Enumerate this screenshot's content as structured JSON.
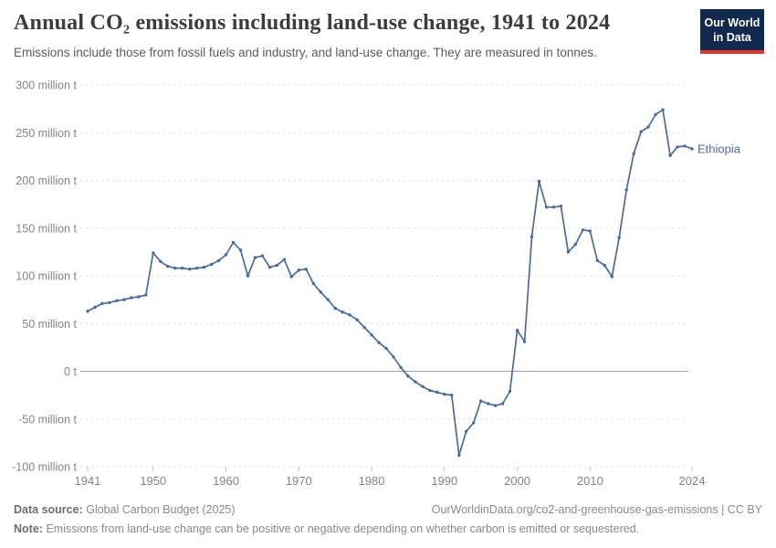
{
  "header": {
    "title": "Annual CO₂ emissions including land-use change, 1941 to 2024",
    "subtitle": "Emissions include those from fossil fuels and industry, and land-use change. They are measured in tonnes.",
    "logo": {
      "line1": "Our World",
      "line2": "in Data"
    }
  },
  "chart_data": {
    "type": "line",
    "title": "Annual CO₂ emissions including land-use change, 1941 to 2024",
    "ylabel": "",
    "xlabel": "",
    "unit": "million t",
    "grid": "horizontal dashed",
    "legend_position": "end-of-line label",
    "xlim": [
      1941,
      2024
    ],
    "ylim": [
      -100,
      300
    ],
    "x_ticks": [
      {
        "value": 1941,
        "label": "1941"
      },
      {
        "value": 1950,
        "label": "1950"
      },
      {
        "value": 1960,
        "label": "1960"
      },
      {
        "value": 1970,
        "label": "1970"
      },
      {
        "value": 1980,
        "label": "1980"
      },
      {
        "value": 1990,
        "label": "1990"
      },
      {
        "value": 2000,
        "label": "2000"
      },
      {
        "value": 2010,
        "label": "2010"
      },
      {
        "value": 2024,
        "label": "2024"
      }
    ],
    "y_ticks": [
      {
        "value": 300,
        "label": "300 million t"
      },
      {
        "value": 250,
        "label": "250 million t"
      },
      {
        "value": 200,
        "label": "200 million t"
      },
      {
        "value": 150,
        "label": "150 million t"
      },
      {
        "value": 100,
        "label": "100 million t"
      },
      {
        "value": 50,
        "label": "50 million t"
      },
      {
        "value": 0,
        "label": "0 t"
      },
      {
        "value": -50,
        "label": "-50 million t"
      },
      {
        "value": -100,
        "label": "-100 million t"
      }
    ],
    "x": [
      1941,
      1942,
      1943,
      1944,
      1945,
      1946,
      1947,
      1948,
      1949,
      1950,
      1951,
      1952,
      1953,
      1954,
      1955,
      1956,
      1957,
      1958,
      1959,
      1960,
      1961,
      1962,
      1963,
      1964,
      1965,
      1966,
      1967,
      1968,
      1969,
      1970,
      1971,
      1972,
      1973,
      1974,
      1975,
      1976,
      1977,
      1978,
      1979,
      1980,
      1981,
      1982,
      1983,
      1984,
      1985,
      1986,
      1987,
      1988,
      1989,
      1990,
      1991,
      1992,
      1993,
      1994,
      1995,
      1996,
      1997,
      1998,
      1999,
      2000,
      2001,
      2002,
      2003,
      2004,
      2005,
      2006,
      2007,
      2008,
      2009,
      2010,
      2011,
      2012,
      2013,
      2014,
      2015,
      2016,
      2017,
      2018,
      2019,
      2020,
      2021,
      2022,
      2023,
      2024
    ],
    "series": [
      {
        "name": "Ethiopia",
        "color": "#4C6A9C",
        "values": [
          63,
          67,
          71,
          72,
          74,
          75,
          77,
          78,
          80,
          124,
          115,
          110,
          108,
          108,
          107,
          108,
          109,
          112,
          116,
          122,
          135,
          127,
          100,
          119,
          121,
          109,
          111,
          117,
          99,
          106,
          107,
          92,
          83,
          75,
          66,
          62,
          59,
          54,
          46,
          38,
          30,
          24,
          15,
          4,
          -5,
          -11,
          -16,
          -20,
          -22,
          -24,
          -25,
          -88,
          -63,
          -54,
          -31,
          -34,
          -36,
          -34,
          -21,
          43,
          31,
          141,
          199,
          172,
          172,
          173,
          125,
          133,
          148,
          147,
          116,
          111,
          99,
          140,
          190,
          228,
          251,
          256,
          269,
          274,
          226,
          235,
          236,
          233
        ]
      }
    ]
  },
  "footer": {
    "source_label": "Data source:",
    "source": "Global Carbon Budget (2025)",
    "url_credit": "OurWorldinData.org/co2-and-greenhouse-gas-emissions | CC BY",
    "note_label": "Note:",
    "note": "Emissions from land-use change can be positive or negative depending on whether carbon is emitted or sequestered."
  },
  "colors": {
    "line": "#4C6A9C",
    "grid": "#DCDCDC",
    "zero_line": "#A0A0A0",
    "tick_mark": "#C4C4C4",
    "axis_text": "#858585",
    "title_text": "#3C3C3C",
    "subtitle_text": "#5B5B5B",
    "footer_text": "#8A8A8A",
    "footer_label": "#6E6E6E",
    "logo_bg": "#12294E",
    "logo_stripe": "#E0392F"
  }
}
